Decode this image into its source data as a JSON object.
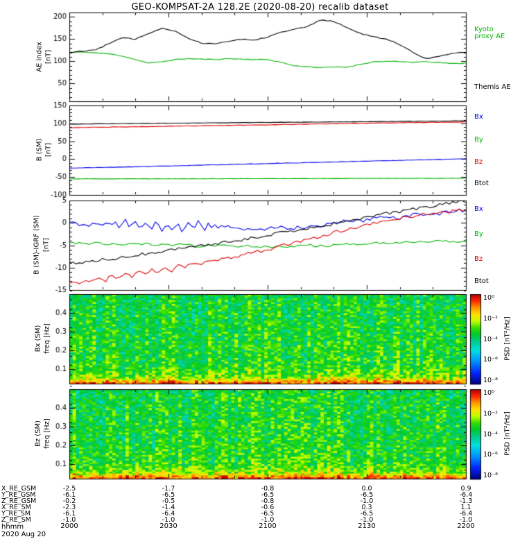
{
  "title": "GEO-KOMPSAT-2A 128.2E (2020-08-20) recalib dataset",
  "colors": {
    "black": "#000000",
    "green": "#00b400",
    "blue": "#0000ee",
    "red": "#dd0000",
    "background": "#ffffff"
  },
  "chart_data": [
    {
      "id": "ae_index",
      "type": "line",
      "ylabel_lines": [
        "AE index",
        "[nT]"
      ],
      "ylim": [
        10,
        210
      ],
      "yticks": [
        50,
        100,
        150,
        200
      ],
      "yminor_step": 10,
      "x_range_minutes": [
        0,
        120
      ],
      "x_step_minutes": 4,
      "x_start_hhmm": "2000",
      "series": [
        {
          "name": "Kyoto proxy AE",
          "color": "green",
          "noise": 0.8,
          "seed": 11,
          "values": [
            120,
            121,
            119,
            117,
            112,
            104,
            96,
            99,
            104,
            106,
            105,
            104,
            106,
            105,
            104,
            104,
            98,
            90,
            88,
            86,
            87,
            87,
            93,
            99,
            100,
            99,
            98,
            99,
            97,
            95,
            96
          ]
        },
        {
          "name": "Themis AE",
          "color": "black",
          "noise": 1.0,
          "seed": 12,
          "values": [
            120,
            123,
            126,
            140,
            153,
            150,
            163,
            175,
            168,
            152,
            141,
            140,
            145,
            150,
            148,
            155,
            166,
            172,
            178,
            193,
            190,
            176,
            163,
            155,
            150,
            138,
            120,
            106,
            112,
            118,
            121
          ]
        }
      ],
      "legend": [
        {
          "text": "Kyoto",
          "color": "green"
        },
        {
          "text": "proxy AE",
          "color": "green"
        },
        {
          "text": "Themis AE",
          "color": "black"
        }
      ]
    },
    {
      "id": "b_sm",
      "type": "line",
      "ylabel_lines": [
        "B (SM)",
        "[nT]"
      ],
      "ylim": [
        -100,
        150
      ],
      "yticks": [
        -100,
        -50,
        0,
        50,
        100,
        150
      ],
      "yminor_step": 10,
      "x_range_minutes": [
        0,
        120
      ],
      "x_step_minutes": 8,
      "series": [
        {
          "name": "Bx",
          "color": "blue",
          "noise": 0.5,
          "seed": 21,
          "values": [
            -25,
            -23.5,
            -22,
            -20.3,
            -18.6,
            -16.8,
            -15,
            -13.2,
            -11.4,
            -9.6,
            -7.8,
            -6,
            -4.2,
            -2.5,
            -0.8,
            1
          ]
        },
        {
          "name": "By",
          "color": "green",
          "noise": 0.4,
          "seed": 22,
          "values": [
            -55,
            -54.9,
            -54.8,
            -54.7,
            -54.6,
            -54.5,
            -54.4,
            -54.3,
            -54.2,
            -54.1,
            -54,
            -53.9,
            -53.8,
            -53.7,
            -53.6,
            -53.5
          ]
        },
        {
          "name": "Bz",
          "color": "red",
          "noise": 0.5,
          "seed": 23,
          "values": [
            88,
            89,
            90,
            91,
            92,
            93,
            94.2,
            95.4,
            96.6,
            97.8,
            99,
            100,
            101,
            102,
            103,
            104
          ]
        },
        {
          "name": "Btot",
          "color": "black",
          "noise": 0.4,
          "seed": 24,
          "values": [
            98,
            98.6,
            99.2,
            99.8,
            100.4,
            101,
            101.6,
            102.2,
            102.8,
            103.4,
            104,
            104.6,
            105.2,
            105.8,
            106.4,
            107
          ]
        }
      ],
      "legend": [
        {
          "text": "Bx",
          "color": "blue"
        },
        {
          "text": "By",
          "color": "green"
        },
        {
          "text": "Bz",
          "color": "red"
        },
        {
          "text": "Btot",
          "color": "black"
        }
      ]
    },
    {
      "id": "b_minus_igrf",
      "type": "line",
      "ylabel_lines": [
        "B (SM)-IGRF (SM)",
        "[nT]"
      ],
      "ylim": [
        -15,
        5
      ],
      "yticks": [
        -15,
        -10,
        -5,
        0,
        5
      ],
      "yminor_step": 1,
      "x_range_minutes": [
        0,
        120
      ],
      "x_step_minutes": 4,
      "series": [
        {
          "name": "Bx",
          "color": "blue",
          "noise": 0.45,
          "seed": 31,
          "burst": {
            "t0": 14,
            "t1": 42,
            "period": 3.2,
            "amp": 1.1
          },
          "values": [
            0,
            -0.3,
            -0.5,
            -0.2,
            -0.5,
            -0.3,
            -0.8,
            -0.5,
            -1.0,
            -0.8,
            -0.5,
            -0.8,
            -1.0,
            -1.2,
            -1.5,
            -1.3,
            -1.0,
            -1.2,
            -0.8,
            -0.5,
            0.0,
            0.3,
            0.5,
            1.0,
            1.5,
            1.2,
            1.8,
            2.2,
            2.0,
            2.5,
            2.8
          ]
        },
        {
          "name": "By",
          "color": "green",
          "noise": 0.3,
          "seed": 32,
          "values": [
            -4.5,
            -4.6,
            -4.5,
            -4.7,
            -4.8,
            -4.6,
            -4.8,
            -5.0,
            -4.9,
            -5.0,
            -5.2,
            -5.0,
            -5.2,
            -5.3,
            -5.2,
            -5.4,
            -5.3,
            -5.2,
            -5.0,
            -5.2,
            -5.0,
            -4.8,
            -4.6,
            -4.5,
            -4.4,
            -4.3,
            -4.5,
            -4.2,
            -4.0,
            -4.1,
            -4.0
          ]
        },
        {
          "name": "Bz",
          "color": "red",
          "noise": 0.35,
          "seed": 33,
          "burst": {
            "t0": 10,
            "t1": 40,
            "period": 4.0,
            "amp": 0.7
          },
          "values": [
            -13.5,
            -13.2,
            -12.8,
            -12.2,
            -12.0,
            -11.5,
            -11.0,
            -10.5,
            -10.0,
            -9.5,
            -9.0,
            -8.5,
            -8.0,
            -7.2,
            -6.5,
            -6.0,
            -5.2,
            -4.5,
            -3.8,
            -3.0,
            -2.2,
            -1.5,
            -0.8,
            -0.2,
            0.5,
            1.0,
            1.5,
            2.0,
            2.3,
            2.6,
            3.0
          ]
        },
        {
          "name": "Btot",
          "color": "black",
          "noise": 0.35,
          "seed": 34,
          "values": [
            -9,
            -8.8,
            -8.5,
            -8.0,
            -7.8,
            -7.2,
            -6.8,
            -6.5,
            -6.0,
            -5.5,
            -5.2,
            -4.8,
            -4.2,
            -3.8,
            -3.2,
            -2.8,
            -2.2,
            -1.8,
            -1.2,
            -0.8,
            -0.2,
            0.3,
            0.8,
            1.5,
            2.2,
            2.5,
            3.0,
            3.5,
            4.0,
            4.5,
            4.8
          ]
        }
      ],
      "legend": [
        {
          "text": "Bx",
          "color": "blue"
        },
        {
          "text": "By",
          "color": "green"
        },
        {
          "text": "Bz",
          "color": "red"
        },
        {
          "text": "Btot",
          "color": "black"
        }
      ]
    },
    {
      "id": "spec_bx",
      "type": "heatmap",
      "ylabel_lines": [
        "Bx (SM)",
        "freq [Hz]"
      ],
      "freq_lim": [
        0.02,
        0.5
      ],
      "yticks": [
        0.1,
        0.2,
        0.3,
        0.4
      ],
      "yminor_step": 0.05,
      "nt": 120,
      "nf": 48,
      "seed": 101,
      "noise": 0.9,
      "col_noise": 0.5,
      "profile": {
        "freq": [
          0.02,
          0.03,
          0.05,
          0.08,
          0.12,
          0.2,
          0.35,
          0.5
        ],
        "logpsd": [
          -0.4,
          -1.1,
          -2.4,
          -3.0,
          -3.3,
          -3.4,
          -3.5,
          -3.6
        ]
      }
    },
    {
      "id": "spec_bz",
      "type": "heatmap",
      "ylabel_lines": [
        "Bz (SM)",
        "freq [Hz]"
      ],
      "freq_lim": [
        0.02,
        0.5
      ],
      "yticks": [
        0.1,
        0.2,
        0.3,
        0.4
      ],
      "yminor_step": 0.05,
      "nt": 120,
      "nf": 48,
      "seed": 202,
      "noise": 0.9,
      "col_noise": 0.5,
      "profile": {
        "freq": [
          0.02,
          0.03,
          0.05,
          0.08,
          0.12,
          0.2,
          0.35,
          0.5
        ],
        "logpsd": [
          -0.4,
          -1.1,
          -2.4,
          -3.0,
          -3.3,
          -3.4,
          -3.5,
          -3.6
        ]
      }
    }
  ],
  "colorbar": {
    "label": "PSD [nT²/Hz]",
    "tick_labels": [
      "10⁰",
      "10⁻²",
      "10⁻⁴",
      "10⁻⁶",
      "10⁻⁸"
    ],
    "tick_logpsd": [
      0,
      -2,
      -4,
      -6,
      -8
    ],
    "range_logpsd": [
      0,
      -8
    ],
    "stops": [
      [
        0,
        "#b00000"
      ],
      [
        -0.6,
        "#ff2a00"
      ],
      [
        -1.2,
        "#ff9900"
      ],
      [
        -1.8,
        "#ffe000"
      ],
      [
        -2.4,
        "#bfff00"
      ],
      [
        -3,
        "#33dd00"
      ],
      [
        -3.6,
        "#00c832"
      ],
      [
        -4.2,
        "#00cc88"
      ],
      [
        -5,
        "#00e0e0"
      ],
      [
        -6,
        "#0090ff"
      ],
      [
        -7,
        "#0028ff"
      ],
      [
        -8,
        "#000080"
      ]
    ]
  },
  "ephemeris": {
    "rows": [
      {
        "label": "X_RE_GSM",
        "values": [
          "-2.5",
          "-1.7",
          "-0.8",
          "0.0",
          "0.9"
        ]
      },
      {
        "label": "Y_RE_GSM",
        "values": [
          "-6.1",
          "-6.5",
          "-6.5",
          "-6.5",
          "-6.4"
        ]
      },
      {
        "label": "Z_RE_GSM",
        "values": [
          "-0.2",
          "-0.5",
          "-0.8",
          "-1.0",
          "-1.3"
        ]
      },
      {
        "label": "X_RE_SM",
        "values": [
          "-2.3",
          "-1.4",
          "-0.6",
          "0.3",
          "1.1"
        ]
      },
      {
        "label": "Y_RE_SM",
        "values": [
          "-6.1",
          "-6.4",
          "-6.5",
          "-6.5",
          "-6.4"
        ]
      },
      {
        "label": "Z_RE_SM",
        "values": [
          "-1.0",
          "-1.0",
          "-1.0",
          "-1.0",
          "-1.0"
        ]
      }
    ],
    "time_row": {
      "label": "hhmm",
      "values": [
        "2000",
        "2030",
        "2100",
        "2130",
        "2200"
      ]
    },
    "date_label": "2020 Aug 20"
  }
}
